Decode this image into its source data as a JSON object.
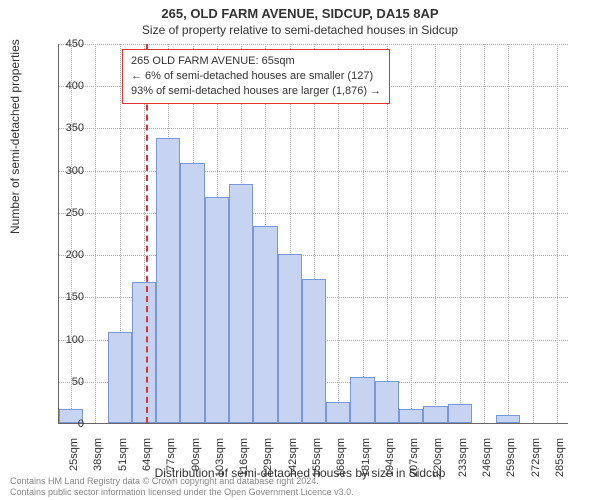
{
  "title": "265, OLD FARM AVENUE, SIDCUP, DA15 8AP",
  "subtitle": "Size of property relative to semi-detached houses in Sidcup",
  "ylabel": "Number of semi-detached properties",
  "xlabel": "Distribution of semi-detached houses by size in Sidcup",
  "ylim": [
    0,
    450
  ],
  "ytick_step": 50,
  "x_start": 25,
  "x_step": 13,
  "x_count": 21,
  "x_unit": "sqm",
  "values": [
    17,
    0,
    108,
    167,
    337,
    308,
    268,
    283,
    233,
    200,
    170,
    25,
    55,
    50,
    17,
    20,
    22,
    0,
    10,
    0,
    0
  ],
  "bar_fill": "#c6d4f1",
  "bar_border": "#7a98d8",
  "grid_color": "#b0b0b0",
  "axis_color": "#666666",
  "background_color": "#ffffff",
  "bar_width_ratio": 1.0,
  "marker": {
    "value_sqm": 65,
    "color": "#dd3333",
    "dash": "dashed"
  },
  "annotation": {
    "line1": "265 OLD FARM AVENUE: 65sqm",
    "line2": "← 6% of semi-detached houses are smaller (127)",
    "line3": "93% of semi-detached houses are larger (1,876) →",
    "border_color": "#dd3333",
    "bg": "#ffffff",
    "fontsize": 11
  },
  "copyright": {
    "line1": "Contains HM Land Registry data © Crown copyright and database right 2024.",
    "line2": "Contains public sector information licensed under the Open Government Licence v3.0."
  }
}
